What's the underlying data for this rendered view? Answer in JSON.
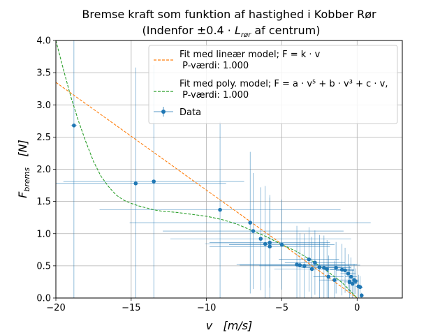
{
  "chart_data": {
    "type": "scatter",
    "title": "Bremse kraft som funktion af hastighed i Kobber Rør",
    "subtitle": "(Indenfor ±0.4 · L_rør af centrum)",
    "subtitle_parts": {
      "pre": "(Indenfor ±0.4 · ",
      "var": "L",
      "sub": "rør",
      "post": " af centrum)"
    },
    "xlabel": "v   [m/s]",
    "ylabel": "F_brems   [N]",
    "ylabel_parts": {
      "var": "F",
      "sub": "brems",
      "post": "   [N]"
    },
    "xlim": [
      -20,
      3
    ],
    "ylim": [
      0,
      4
    ],
    "xticks": [
      -20,
      -15,
      -10,
      -5,
      0
    ],
    "yticks": [
      0.0,
      0.5,
      1.0,
      1.5,
      2.0,
      2.5,
      3.0,
      3.5,
      4.0
    ],
    "xtick_labels": [
      "−20",
      "−15",
      "−10",
      "−5",
      "0"
    ],
    "ytick_labels": [
      "0.0",
      "0.5",
      "1.0",
      "1.5",
      "2.0",
      "2.5",
      "3.0",
      "3.5",
      "4.0"
    ],
    "grid": true,
    "legend_position": "top-right",
    "legend": [
      {
        "line1": "Fit med lineær model; F = k · v",
        "line2": " P-værdi: 1.000",
        "color": "#ff7f0e",
        "style": "dashed"
      },
      {
        "line1": "Fit med poly. model; F = a · v⁵ + b · v³ + c · v,",
        "line2": " P-værdi: 1.000",
        "color": "#2ca02c",
        "style": "dashed"
      },
      {
        "line1": "Data",
        "line2": "",
        "color": "#1f77b4",
        "style": "errorbar"
      }
    ],
    "series": [
      {
        "name": "Fit med lineær model",
        "color": "#ff7f0e",
        "x": [
          -20,
          0
        ],
        "y": [
          3.35,
          0.0
        ]
      },
      {
        "name": "Fit med poly. model",
        "color": "#2ca02c",
        "x": [
          -20,
          -19.5,
          -19,
          -18.5,
          -18,
          -17.5,
          -17,
          -16.5,
          -16,
          -15.5,
          -15,
          -14.5,
          -14,
          -13.5,
          -13,
          -12.5,
          -12,
          -11,
          -10,
          -9,
          -8,
          -7,
          -6,
          -5,
          -4,
          -3,
          -2,
          -1,
          -0.5,
          0
        ],
        "y": [
          4.0,
          3.55,
          3.12,
          2.75,
          2.42,
          2.12,
          1.89,
          1.73,
          1.6,
          1.52,
          1.47,
          1.43,
          1.4,
          1.37,
          1.35,
          1.34,
          1.33,
          1.3,
          1.27,
          1.22,
          1.15,
          1.05,
          0.95,
          0.83,
          0.72,
          0.58,
          0.42,
          0.24,
          0.12,
          0.0
        ]
      },
      {
        "name": "Data",
        "color": "#1f77b4",
        "points": [
          {
            "x": -18.8,
            "y": 2.68,
            "xerr": 0.2,
            "yerr": 2.8
          },
          {
            "x": -14.7,
            "y": 1.78,
            "xerr": 6.0,
            "yerr": 1.8
          },
          {
            "x": -13.5,
            "y": 1.81,
            "xerr": 6.0,
            "yerr": 1.81
          },
          {
            "x": -9.1,
            "y": 1.37,
            "xerr": 8.0,
            "yerr": 1.37
          },
          {
            "x": -7.1,
            "y": 1.17,
            "xerr": 8.0,
            "yerr": 1.1
          },
          {
            "x": -6.9,
            "y": 1.04,
            "xerr": 6.0,
            "yerr": 0.9
          },
          {
            "x": -6.4,
            "y": 0.92,
            "xerr": 6.0,
            "yerr": 0.8
          },
          {
            "x": -6.1,
            "y": 0.84,
            "xerr": 4.0,
            "yerr": 0.9
          },
          {
            "x": -5.8,
            "y": 0.8,
            "xerr": 4.0,
            "yerr": 0.8
          },
          {
            "x": -5.8,
            "y": 0.86,
            "xerr": 4.0,
            "yerr": 0.7
          },
          {
            "x": -5.0,
            "y": 0.83,
            "xerr": 3.5,
            "yerr": 0.7
          },
          {
            "x": -4.0,
            "y": 0.52,
            "xerr": 4.0,
            "yerr": 0.6
          },
          {
            "x": -3.8,
            "y": 0.51,
            "xerr": 4.0,
            "yerr": 0.5
          },
          {
            "x": -3.5,
            "y": 0.5,
            "xerr": 3.0,
            "yerr": 0.5
          },
          {
            "x": -3.2,
            "y": 0.6,
            "xerr": 2.0,
            "yerr": 0.5
          },
          {
            "x": -3.0,
            "y": 0.45,
            "xerr": 2.5,
            "yerr": 0.5
          },
          {
            "x": -2.8,
            "y": 0.55,
            "xerr": 2.0,
            "yerr": 0.5
          },
          {
            "x": -2.5,
            "y": 0.48,
            "xerr": 1.5,
            "yerr": 0.5
          },
          {
            "x": -2.2,
            "y": 0.47,
            "xerr": 1.5,
            "yerr": 0.5
          },
          {
            "x": -2.0,
            "y": 0.45,
            "xerr": 1.2,
            "yerr": 0.45
          },
          {
            "x": -1.9,
            "y": 0.33,
            "xerr": 1.0,
            "yerr": 0.33
          },
          {
            "x": -1.5,
            "y": 0.28,
            "xerr": 1.0,
            "yerr": 0.3
          },
          {
            "x": -1.4,
            "y": 0.47,
            "xerr": 1.0,
            "yerr": 0.4
          },
          {
            "x": -1.0,
            "y": 0.44,
            "xerr": 0.8,
            "yerr": 0.4
          },
          {
            "x": -0.8,
            "y": 0.43,
            "xerr": 0.6,
            "yerr": 0.35
          },
          {
            "x": -0.6,
            "y": 0.38,
            "xerr": 0.5,
            "yerr": 0.3
          },
          {
            "x": -0.5,
            "y": 0.25,
            "xerr": 0.4,
            "yerr": 0.25
          },
          {
            "x": -0.4,
            "y": 0.33,
            "xerr": 0.4,
            "yerr": 0.3
          },
          {
            "x": -0.3,
            "y": 0.22,
            "xerr": 0.3,
            "yerr": 0.22
          },
          {
            "x": -0.2,
            "y": 0.28,
            "xerr": 0.3,
            "yerr": 0.25
          },
          {
            "x": -0.1,
            "y": 0.26,
            "xerr": 0.2,
            "yerr": 0.2
          },
          {
            "x": 0.1,
            "y": 0.18,
            "xerr": 0.2,
            "yerr": 0.18
          },
          {
            "x": 0.2,
            "y": 0.17,
            "xerr": 0.2,
            "yerr": 0.17
          },
          {
            "x": 0.3,
            "y": 0.04,
            "xerr": 0.1,
            "yerr": 0.04
          }
        ]
      }
    ]
  }
}
